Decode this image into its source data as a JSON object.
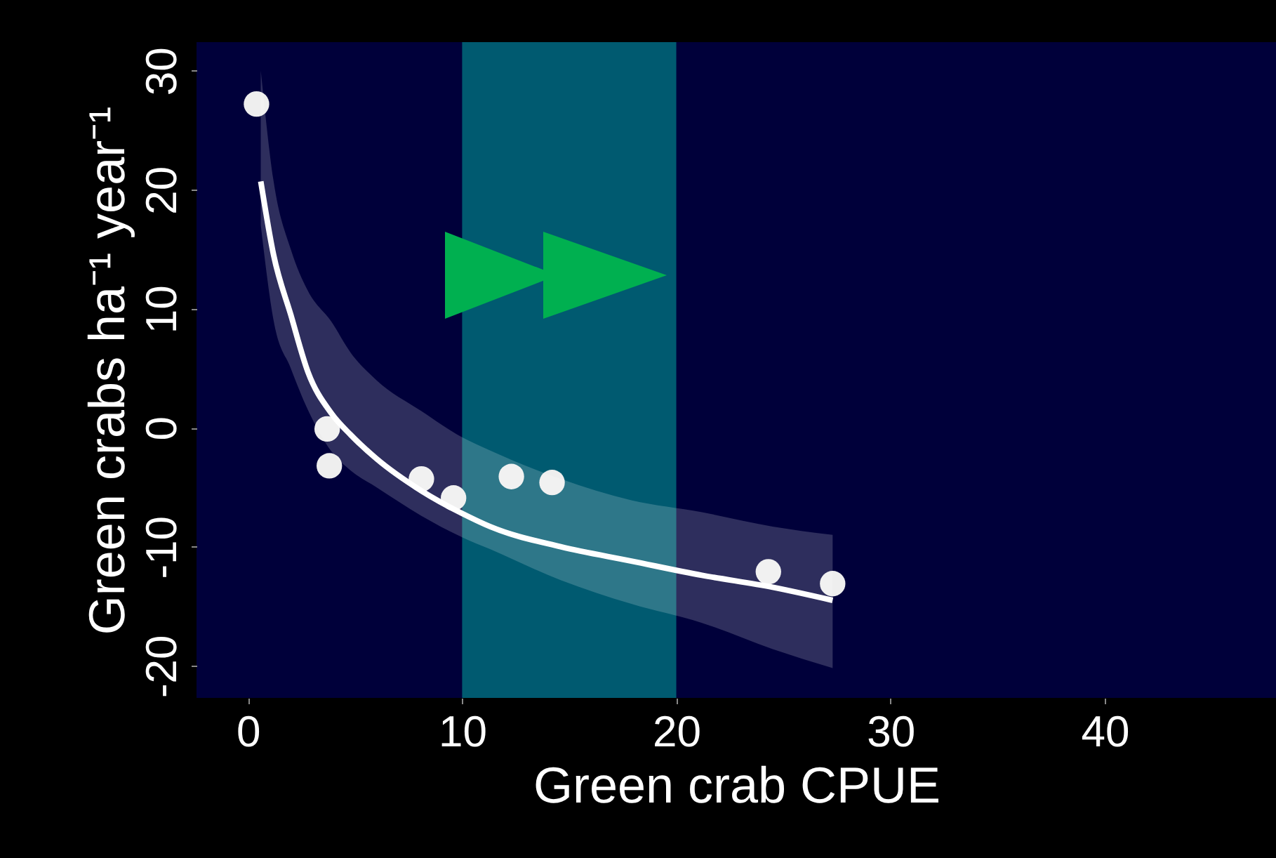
{
  "chart_data": {
    "type": "scatter",
    "xlabel": "Green crab CPUE",
    "ylabel": "Green crabs ha⁻¹ year⁻¹",
    "xlim": [
      -2.4,
      48
    ],
    "ylim": [
      -22.7,
      32.4
    ],
    "xticks": [
      0,
      10,
      20,
      30,
      40
    ],
    "yticks": [
      -20,
      -10,
      0,
      10,
      20,
      30
    ],
    "marker": "circle",
    "grid": false,
    "bands": [
      {
        "axis": "x",
        "from": 10,
        "to": 20,
        "color": "#005a70"
      }
    ],
    "series": [
      {
        "color": "#eeeeee",
        "x": [
          0.4,
          3.7,
          3.8,
          8.1,
          9.6,
          12.3,
          14.2,
          24.3,
          27.3
        ],
        "values": [
          27.2,
          -0.1,
          -3.2,
          -4.3,
          -5.9,
          -4.1,
          -4.6,
          -12.1,
          -13.1
        ]
      },
      {
        "type": "line",
        "marker": "none",
        "color": "#ffffff",
        "x": [
          0.6,
          1.2,
          2,
          2.8,
          3.9,
          4.8,
          6,
          8.1,
          10,
          11.3,
          14.6,
          17.9,
          21.2,
          24.5,
          27.3
        ],
        "values": [
          20.7,
          14.5,
          9.5,
          4.7,
          1.2,
          -0.6,
          -2.6,
          -5.3,
          -7.2,
          -8.3,
          -10,
          -11.2,
          -12.4,
          -13.4,
          -14.5
        ],
        "upper": [
          30,
          20.7,
          15,
          11.5,
          8.9,
          6.3,
          4,
          1.4,
          -0.8,
          -1.9,
          -4.3,
          -6.1,
          -7.1,
          -8.3,
          -9
        ],
        "lower": [
          17,
          9,
          5,
          1.5,
          -2,
          -3.6,
          -5,
          -7.4,
          -9.2,
          -10.2,
          -12.8,
          -14.8,
          -16.4,
          -18.6,
          -20.2
        ]
      }
    ]
  }
}
